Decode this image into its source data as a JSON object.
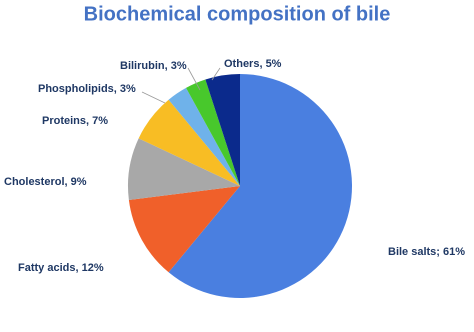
{
  "chart_data": {
    "type": "pie",
    "title": "Biochemical composition of bile",
    "values": [
      61,
      12,
      9,
      7,
      3,
      3,
      5
    ],
    "value_labels": [
      "Bile salts; 61%",
      "Fatty acids, 12%",
      "Cholesterol, 9%",
      "Proteins, 7%",
      "Phospholipids, 3%",
      "Bilirubin, 3%",
      "Others, 5%"
    ],
    "colors": [
      "#4a7fe0",
      "#f0602a",
      "#a8a8a8",
      "#f8bd24",
      "#6fb2ea",
      "#48c82c",
      "#0b2a8c"
    ]
  }
}
